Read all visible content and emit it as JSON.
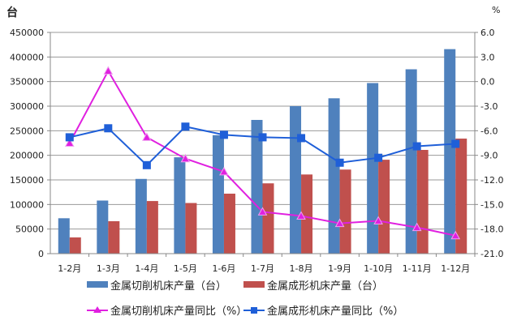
{
  "chart_data": {
    "type": "bar",
    "categories": [
      "1-2月",
      "1-3月",
      "1-4月",
      "1-5月",
      "1-6月",
      "1-7月",
      "1-8月",
      "1-9月",
      "1-10月",
      "1-11月",
      "1-12月"
    ],
    "left_axis": {
      "label": "台",
      "range": [
        0,
        450000
      ],
      "ticks": [
        "0",
        "50000",
        "100000",
        "150000",
        "200000",
        "250000",
        "300000",
        "350000",
        "400000",
        "450000"
      ]
    },
    "right_axis": {
      "label": "%",
      "range": [
        -21,
        6
      ],
      "ticks": [
        "-21.0",
        "-18.0",
        "-15.0",
        "-12.0",
        "-9.0",
        "-6.0",
        "-3.0",
        "0.0",
        "3.0",
        "6.0"
      ]
    },
    "grid": true,
    "legend_position": "bottom",
    "series": [
      {
        "name": "金属切削机床产量（台）",
        "type": "bar",
        "axis": "left",
        "color": "#4F81BD",
        "values": [
          72000,
          108000,
          152000,
          196000,
          241000,
          272000,
          300000,
          316000,
          347000,
          375000,
          416000
        ]
      },
      {
        "name": "金属成形机床产量（台）",
        "type": "bar",
        "axis": "left",
        "color": "#C0504D",
        "values": [
          33000,
          66000,
          107000,
          103000,
          122000,
          143000,
          161000,
          171000,
          191000,
          211000,
          234000
        ]
      },
      {
        "name": "金属切削机床产量同比（%）",
        "type": "line",
        "axis": "right",
        "color": "#E020E0",
        "marker": "triangle",
        "values": [
          -7.5,
          1.3,
          -6.8,
          -9.4,
          -11.0,
          -15.9,
          -16.4,
          -17.3,
          -17.0,
          -17.8,
          -18.8
        ]
      },
      {
        "name": "金属成形机床产量同比（%）",
        "type": "line",
        "axis": "right",
        "color": "#1F5FD8",
        "marker": "square",
        "values": [
          -6.8,
          -5.7,
          -10.2,
          -5.5,
          -6.5,
          -6.8,
          -6.9,
          -9.9,
          -9.3,
          -7.9,
          -7.6
        ]
      }
    ]
  }
}
